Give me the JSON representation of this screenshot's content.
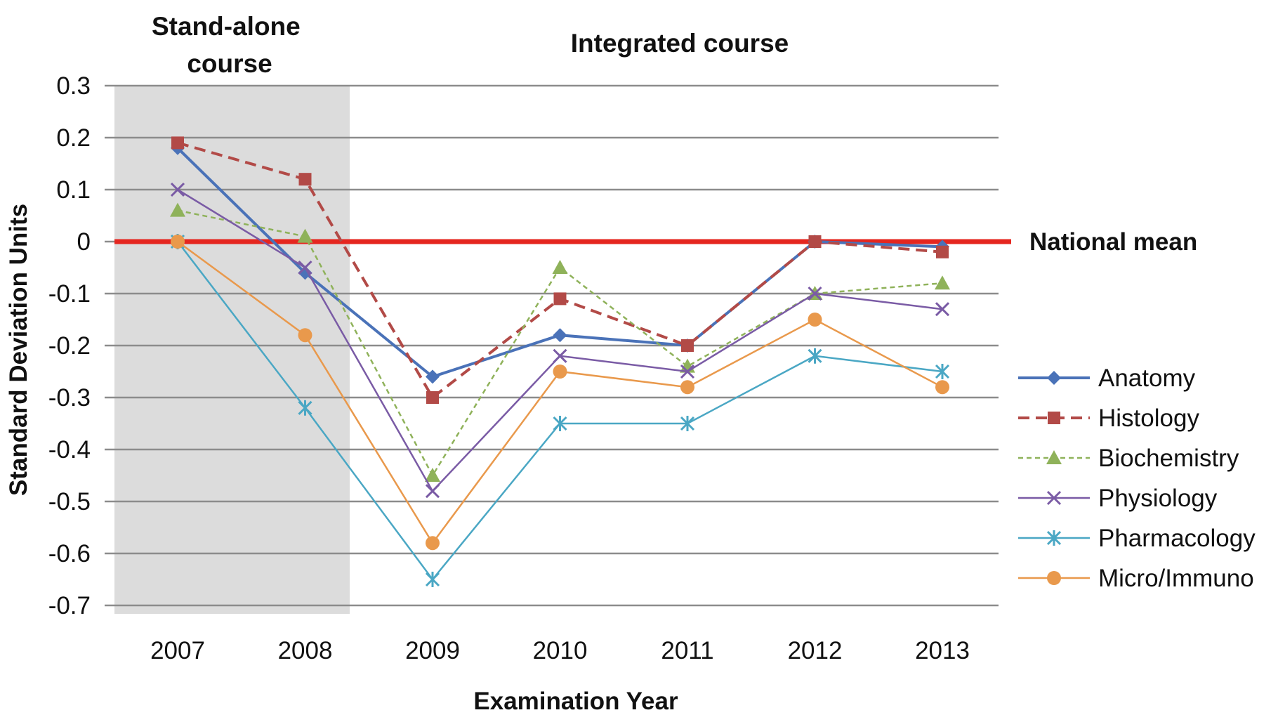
{
  "chart_data": {
    "type": "line",
    "categories": [
      "2007",
      "2008",
      "2009",
      "2010",
      "2011",
      "2012",
      "2013"
    ],
    "xlabel": "Examination Year",
    "ylabel": "Standard Deviation Units",
    "ylim": [
      -0.7,
      0.3
    ],
    "yticks": [
      "0.3",
      "0.2",
      "0.1",
      "0",
      "-0.1",
      "-0.2",
      "-0.3",
      "-0.4",
      "-0.5",
      "-0.6",
      "-0.7"
    ],
    "grid": true,
    "legend_position": "right",
    "regions": [
      {
        "label_lines": [
          "Stand-alone",
          "course"
        ],
        "from": "2007",
        "to": "2008",
        "shaded": true,
        "color": "#dcdcdc"
      },
      {
        "label_lines": [
          "Integrated course"
        ],
        "from": "2009",
        "to": "2013",
        "shaded": false
      }
    ],
    "reference_line": {
      "label": "National mean",
      "value": 0,
      "color": "#e5261f"
    },
    "series": [
      {
        "name": "Anatomy",
        "values": [
          0.18,
          -0.06,
          -0.26,
          -0.18,
          -0.2,
          0.0,
          -0.01
        ],
        "color": "#4a72b8",
        "dash": "solid",
        "marker": "diamond"
      },
      {
        "name": "Histology",
        "values": [
          0.19,
          0.12,
          -0.3,
          -0.11,
          -0.2,
          0.0,
          -0.02
        ],
        "color": "#b24a47",
        "dash": "dashed",
        "marker": "square"
      },
      {
        "name": "Biochemistry",
        "values": [
          0.06,
          0.01,
          -0.45,
          -0.05,
          -0.24,
          -0.1,
          -0.08
        ],
        "color": "#8fb25a",
        "dash": "dotted",
        "marker": "triangle"
      },
      {
        "name": "Physiology",
        "values": [
          0.1,
          -0.05,
          -0.48,
          -0.22,
          -0.25,
          -0.1,
          -0.13
        ],
        "color": "#7a5ba5",
        "dash": "solid",
        "marker": "x"
      },
      {
        "name": "Pharmacology",
        "values": [
          0.0,
          -0.32,
          -0.65,
          -0.35,
          -0.35,
          -0.22,
          -0.25
        ],
        "color": "#4aa7c4",
        "dash": "solid",
        "marker": "star"
      },
      {
        "name": "Micro/Immuno",
        "values": [
          0.0,
          -0.18,
          -0.58,
          -0.25,
          -0.28,
          -0.15,
          -0.28
        ],
        "color": "#e9994c",
        "dash": "solid",
        "marker": "circle"
      }
    ]
  }
}
